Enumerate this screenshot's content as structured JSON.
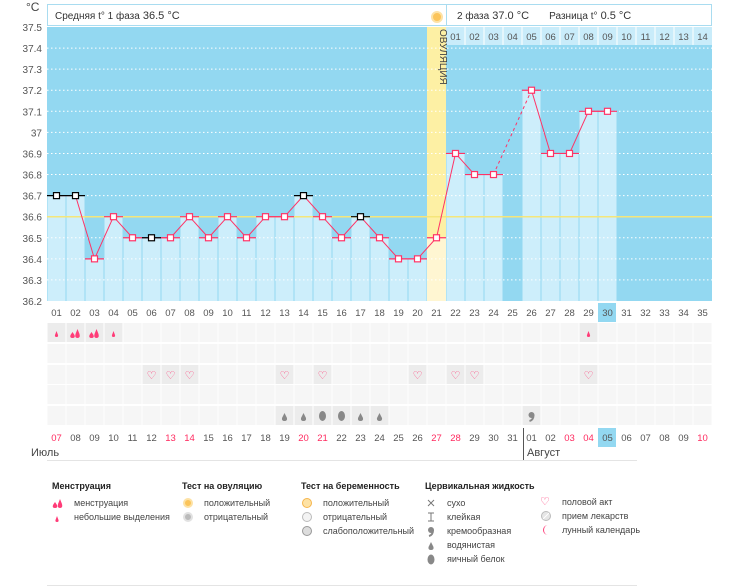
{
  "header": {
    "unit": "°C",
    "phase1_label": "Средняя t° 1 фаза",
    "phase1_value": "36.5 °C",
    "phase2_label": "2 фаза",
    "phase2_value": "37.0 °C",
    "diff_label": "Разница t°",
    "diff_value": "0.5 °C",
    "ovulation_label": "ОВУЛЯЦИЯ"
  },
  "chart_data": {
    "type": "line",
    "ylabel": "°C",
    "ylim": [
      36.2,
      37.5
    ],
    "yticks": [
      "37.5",
      "37.4",
      "37.3",
      "37.2",
      "37.1",
      "37",
      "36.9",
      "36.8",
      "36.7",
      "36.6",
      "36.5",
      "36.4",
      "36.3",
      "36.2"
    ],
    "grid": true,
    "cycle_days": [
      "01",
      "02",
      "03",
      "04",
      "05",
      "06",
      "07",
      "08",
      "09",
      "10",
      "11",
      "12",
      "13",
      "14",
      "15",
      "16",
      "17",
      "18",
      "19",
      "20",
      "21",
      "22",
      "23",
      "24",
      "25",
      "26",
      "27",
      "28",
      "29",
      "30",
      "31",
      "32",
      "33",
      "34",
      "35"
    ],
    "temperatures": [
      36.7,
      36.7,
      36.4,
      36.6,
      36.5,
      36.5,
      36.5,
      36.6,
      36.5,
      36.6,
      36.5,
      36.6,
      36.6,
      36.7,
      36.6,
      36.5,
      36.6,
      36.5,
      36.4,
      36.4,
      36.5,
      36.9,
      36.8,
      36.8,
      null,
      37.2,
      36.9,
      36.9,
      37.1,
      37.1,
      null,
      null,
      null,
      null,
      null
    ],
    "excluded_days": [
      1,
      2,
      6,
      14,
      17
    ],
    "coverline": 36.6,
    "ovulation_day": 21,
    "current_day": 30,
    "phase2_days": [
      "01",
      "02",
      "03",
      "04",
      "05",
      "06",
      "07",
      "08",
      "09",
      "10",
      "11",
      "12",
      "13",
      "14"
    ],
    "colors": {
      "line": "#ff3366",
      "bar": "#cdeefb",
      "sky": "#93d8f1",
      "ovulation": "#fdf0a4",
      "coverline": "#f5e67a",
      "excluded": "#000000"
    }
  },
  "rows": {
    "menstruation": {
      "1": "spotting",
      "2": "menstruation",
      "3": "menstruation",
      "4": "spotting",
      "29": "spotting"
    },
    "ovulation_test": {},
    "intercourse": [
      6,
      7,
      8,
      13,
      15,
      20,
      22,
      23,
      29
    ],
    "pregnancy_test": {},
    "cervical": {
      "13": "watery",
      "14": "watery",
      "15": "egg-white",
      "16": "egg-white",
      "17": "watery",
      "18": "watery",
      "26": "creamy"
    }
  },
  "dates": {
    "labels": [
      "07",
      "08",
      "09",
      "10",
      "11",
      "12",
      "13",
      "14",
      "15",
      "16",
      "17",
      "18",
      "19",
      "20",
      "21",
      "22",
      "23",
      "24",
      "25",
      "26",
      "27",
      "28",
      "29",
      "30",
      "31",
      "01",
      "02",
      "03",
      "04",
      "05",
      "06",
      "07",
      "08",
      "09",
      "10"
    ],
    "weekend_indexes": [
      0,
      6,
      7,
      13,
      14,
      20,
      21,
      27,
      28,
      34
    ],
    "today_index": 29,
    "months": [
      "Июль",
      "Август"
    ]
  },
  "legend": {
    "menstruation": {
      "title": "Менструация",
      "items": [
        "менструация",
        "небольшие выделения"
      ]
    },
    "ovulation_test": {
      "title": "Тест на овуляцию",
      "items": [
        "положительный",
        "отрицательный"
      ]
    },
    "pregnancy_test": {
      "title": "Тест на беременность",
      "items": [
        "положительный",
        "отрицательный",
        "слабоположительный"
      ]
    },
    "cervical": {
      "title": "Цервикальная жидкость",
      "items": [
        "сухо",
        "клейкая",
        "кремообразная",
        "водянистая",
        "яичный белок"
      ]
    },
    "other": {
      "items": [
        "половой акт",
        "прием лекарств",
        "лунный календарь"
      ]
    }
  }
}
